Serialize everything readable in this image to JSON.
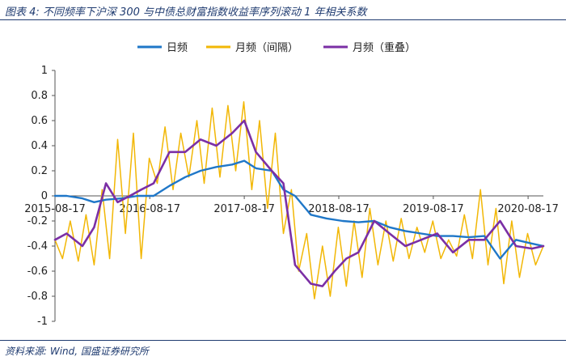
{
  "figure": {
    "title": "图表 4:  不同频率下沪深 300 与中债总财富指数收益率序列滚动 1 年相关系数",
    "source": "资料来源:  Wind,  国盛证券研究所"
  },
  "colors": {
    "daily": "#1f77c8",
    "monthly_interval": "#f2b705",
    "monthly_overlap": "#7b2fa5",
    "frame": "#1f3b70",
    "axis": "#555555"
  },
  "chart_data": {
    "type": "line",
    "title": "",
    "xlabel": "",
    "ylabel": "",
    "ylim": [
      -1,
      1
    ],
    "yticks": [
      -1,
      -0.8,
      -0.6,
      -0.4,
      -0.2,
      0,
      0.2,
      0.4,
      0.6,
      0.8,
      1
    ],
    "ytick_labels": [
      "-1",
      "-0.8",
      "-0.6",
      "-0.4",
      "-0.2",
      "0",
      "0.2",
      "0.4",
      "0.6",
      "0.8",
      "1"
    ],
    "xlim": [
      "2015-08-17",
      "2020-10-15"
    ],
    "xticks": [
      "2015-08-17",
      "2016-08-17",
      "2017-08-17",
      "2018-08-17",
      "2019-08-17",
      "2020-08-17"
    ],
    "legend": "top-center",
    "grid": false,
    "series": [
      {
        "name": "日频",
        "x": [
          "2015-08-17",
          "2015-10-01",
          "2015-12-01",
          "2016-01-15",
          "2016-03-01",
          "2016-05-01",
          "2016-07-01",
          "2016-09-01",
          "2016-11-01",
          "2017-01-01",
          "2017-03-01",
          "2017-05-01",
          "2017-07-01",
          "2017-08-17",
          "2017-10-01",
          "2017-12-01",
          "2018-01-15",
          "2018-03-01",
          "2018-05-01",
          "2018-07-01",
          "2018-09-01",
          "2018-11-01",
          "2019-01-01",
          "2019-03-01",
          "2019-05-01",
          "2019-07-01",
          "2019-09-01",
          "2019-11-01",
          "2020-01-01",
          "2020-03-01",
          "2020-05-01",
          "2020-07-01",
          "2020-09-01",
          "2020-10-15"
        ],
        "values": [
          0.0,
          0.0,
          -0.02,
          -0.05,
          -0.03,
          -0.02,
          0.0,
          0.0,
          0.08,
          0.15,
          0.2,
          0.23,
          0.25,
          0.28,
          0.22,
          0.2,
          0.05,
          0.0,
          -0.15,
          -0.18,
          -0.2,
          -0.21,
          -0.2,
          -0.25,
          -0.28,
          -0.3,
          -0.32,
          -0.32,
          -0.33,
          -0.32,
          -0.5,
          -0.35,
          -0.38,
          -0.4
        ]
      },
      {
        "name": "月频（间隔）",
        "x": [
          "2015-08-17",
          "2015-09-15",
          "2015-10-15",
          "2015-11-15",
          "2015-12-15",
          "2016-01-15",
          "2016-02-15",
          "2016-03-15",
          "2016-04-15",
          "2016-05-15",
          "2016-06-15",
          "2016-07-15",
          "2016-08-15",
          "2016-09-15",
          "2016-10-15",
          "2016-11-15",
          "2016-12-15",
          "2017-01-15",
          "2017-02-15",
          "2017-03-15",
          "2017-04-15",
          "2017-05-15",
          "2017-06-15",
          "2017-07-15",
          "2017-08-15",
          "2017-09-15",
          "2017-10-15",
          "2017-11-15",
          "2017-12-15",
          "2018-01-15",
          "2018-02-15",
          "2018-03-15",
          "2018-04-15",
          "2018-05-15",
          "2018-06-15",
          "2018-07-15",
          "2018-08-15",
          "2018-09-15",
          "2018-10-15",
          "2018-11-15",
          "2018-12-15",
          "2019-01-15",
          "2019-02-15",
          "2019-03-15",
          "2019-04-15",
          "2019-05-15",
          "2019-06-15",
          "2019-07-15",
          "2019-08-15",
          "2019-09-15",
          "2019-10-15",
          "2019-11-15",
          "2019-12-15",
          "2020-01-15",
          "2020-02-15",
          "2020-03-15",
          "2020-04-15",
          "2020-05-15",
          "2020-06-15",
          "2020-07-15",
          "2020-08-15",
          "2020-09-15",
          "2020-10-15"
        ],
        "values": [
          -0.35,
          -0.5,
          -0.2,
          -0.52,
          -0.15,
          -0.55,
          0.05,
          -0.5,
          0.45,
          -0.3,
          0.5,
          -0.5,
          0.3,
          0.1,
          0.55,
          0.05,
          0.5,
          0.15,
          0.6,
          0.1,
          0.7,
          0.15,
          0.72,
          0.2,
          0.75,
          0.05,
          0.6,
          -0.1,
          0.5,
          -0.3,
          0.05,
          -0.6,
          -0.3,
          -0.82,
          -0.4,
          -0.8,
          -0.25,
          -0.72,
          -0.2,
          -0.65,
          -0.1,
          -0.55,
          -0.2,
          -0.52,
          -0.18,
          -0.5,
          -0.25,
          -0.45,
          -0.2,
          -0.5,
          -0.35,
          -0.48,
          -0.15,
          -0.5,
          0.05,
          -0.55,
          -0.1,
          -0.7,
          -0.2,
          -0.65,
          -0.3,
          -0.55,
          -0.4
        ]
      },
      {
        "name": "月频（重叠）",
        "x": [
          "2015-08-17",
          "2015-10-01",
          "2015-12-01",
          "2016-01-15",
          "2016-03-01",
          "2016-04-15",
          "2016-06-01",
          "2016-07-15",
          "2016-09-01",
          "2016-11-01",
          "2017-01-01",
          "2017-03-01",
          "2017-05-01",
          "2017-07-01",
          "2017-08-17",
          "2017-10-01",
          "2017-12-01",
          "2018-01-15",
          "2018-03-01",
          "2018-05-01",
          "2018-06-15",
          "2018-08-01",
          "2018-09-15",
          "2018-11-01",
          "2019-01-01",
          "2019-03-01",
          "2019-05-01",
          "2019-07-01",
          "2019-09-01",
          "2019-11-01",
          "2020-01-01",
          "2020-03-01",
          "2020-05-01",
          "2020-07-01",
          "2020-09-01",
          "2020-10-15"
        ],
        "values": [
          -0.35,
          -0.3,
          -0.4,
          -0.25,
          0.1,
          -0.05,
          0.0,
          0.05,
          0.1,
          0.35,
          0.35,
          0.45,
          0.4,
          0.5,
          0.6,
          0.35,
          0.2,
          0.1,
          -0.55,
          -0.7,
          -0.72,
          -0.6,
          -0.5,
          -0.45,
          -0.2,
          -0.3,
          -0.4,
          -0.35,
          -0.3,
          -0.45,
          -0.35,
          -0.35,
          -0.2,
          -0.4,
          -0.42,
          -0.4
        ]
      }
    ]
  }
}
